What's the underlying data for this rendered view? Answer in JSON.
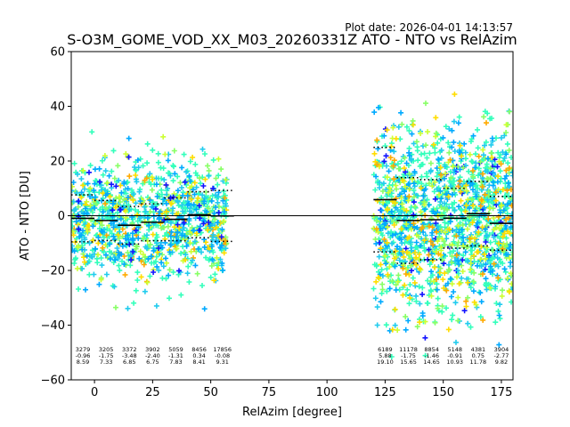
{
  "plot_date": "Plot date: 2026-04-01 14:13:57",
  "chart_data": {
    "type": "scatter",
    "title": "S-O3M_GOME_VOD_XX_M03_20260331Z ATO - NTO vs RelAzim",
    "xlabel": "RelAzim [degree]",
    "ylabel": "ATO - NTO [DU]",
    "xlim": [
      -10,
      180
    ],
    "ylim": [
      -60,
      60
    ],
    "xticks": [
      0,
      25,
      50,
      75,
      100,
      125,
      150,
      175
    ],
    "yticks": [
      -60,
      -40,
      -20,
      0,
      20,
      40,
      60
    ],
    "marker": "+",
    "colormap": [
      "#1414ff",
      "#00aaff",
      "#22ccee",
      "#33ffbb",
      "#88ff66",
      "#ccff33",
      "#ffdd00",
      "#ffaa00"
    ],
    "point_clouds": [
      {
        "x_range": [
          -10,
          57
        ],
        "y_center": -1.5,
        "y_spread": 18,
        "description": "left cluster"
      },
      {
        "x_range": [
          120,
          180
        ],
        "y_center": -1.0,
        "y_spread": 28,
        "description": "right cluster"
      }
    ],
    "zero_line": 0,
    "bins": [
      {
        "x_start": -10,
        "x_end": 0,
        "count": "3279",
        "mean": -0.96,
        "mean_label": "-0.96",
        "std": 8.59,
        "std_label": "8.59"
      },
      {
        "x_start": 0,
        "x_end": 10,
        "count": "3205",
        "mean": -1.75,
        "mean_label": "-1.75",
        "std": 7.33,
        "std_label": "7.33"
      },
      {
        "x_start": 10,
        "x_end": 20,
        "count": "3372",
        "mean": -3.48,
        "mean_label": "-3.48",
        "std": 6.85,
        "std_label": "6.85"
      },
      {
        "x_start": 20,
        "x_end": 30,
        "count": "3902",
        "mean": -2.4,
        "mean_label": "-2.40",
        "std": 6.75,
        "std_label": "6.75"
      },
      {
        "x_start": 30,
        "x_end": 40,
        "count": "5059",
        "mean": -1.31,
        "mean_label": "-1.31",
        "std": 7.83,
        "std_label": "7.83"
      },
      {
        "x_start": 40,
        "x_end": 50,
        "count": "8456",
        "mean": 0.34,
        "mean_label": "0.34",
        "std": 8.41,
        "std_label": "8.41"
      },
      {
        "x_start": 50,
        "x_end": 60,
        "count": "17856",
        "mean": -0.08,
        "mean_label": "-0.08",
        "std": 9.31,
        "std_label": "9.31"
      },
      {
        "x_start": 120,
        "x_end": 130,
        "count": "6189",
        "mean": 5.88,
        "mean_label": "5.88",
        "std": 19.1,
        "std_label": "19.10"
      },
      {
        "x_start": 130,
        "x_end": 140,
        "count": "11178",
        "mean": -1.75,
        "mean_label": "-1.75",
        "std": 15.65,
        "std_label": "15.65"
      },
      {
        "x_start": 140,
        "x_end": 150,
        "count": "8854",
        "mean": -1.46,
        "mean_label": "-1.46",
        "std": 14.65,
        "std_label": "14.65"
      },
      {
        "x_start": 150,
        "x_end": 160,
        "count": "5148",
        "mean": -0.91,
        "mean_label": "-0.91",
        "std": 10.93,
        "std_label": "10.93"
      },
      {
        "x_start": 160,
        "x_end": 170,
        "count": "4381",
        "mean": 0.75,
        "mean_label": "0.75",
        "std": 11.78,
        "std_label": "11.78"
      },
      {
        "x_start": 170,
        "x_end": 180,
        "count": "3904",
        "mean": -2.77,
        "mean_label": "-2.77",
        "std": 9.82,
        "std_label": "9.82"
      }
    ]
  }
}
